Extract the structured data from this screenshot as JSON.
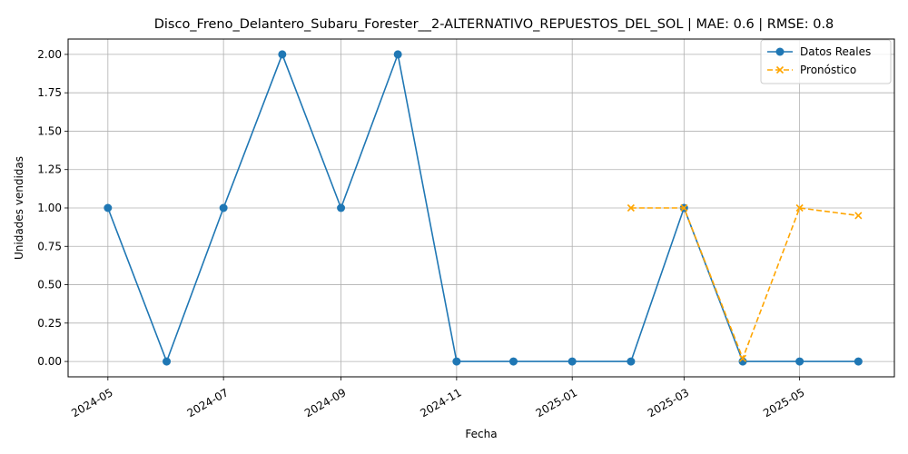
{
  "chart_data": {
    "type": "line",
    "title": "Disco_Freno_Delantero_Subaru_Forester__2-ALTERNATIVO_REPUESTOS_DEL_SOL | MAE: 0.6 | RMSE: 0.8",
    "xlabel": "Fecha",
    "ylabel": "Unidades vendidas",
    "ylim": [
      -0.1,
      2.1
    ],
    "xlim": [
      "2024-04-10",
      "2025-06-20"
    ],
    "grid": true,
    "legend_position": "top-right",
    "x_ticks": [
      "2024-05",
      "2024-07",
      "2024-09",
      "2024-11",
      "2025-01",
      "2025-03",
      "2025-05"
    ],
    "y_ticks": [
      "0.00",
      "0.25",
      "0.50",
      "0.75",
      "1.00",
      "1.25",
      "1.50",
      "1.75",
      "2.00"
    ],
    "series": [
      {
        "name": "Datos Reales",
        "color": "#1f77b4",
        "style": "solid",
        "marker": "circle",
        "points": [
          {
            "x": "2024-05-01",
            "y": 1
          },
          {
            "x": "2024-06-01",
            "y": 0
          },
          {
            "x": "2024-07-01",
            "y": 1
          },
          {
            "x": "2024-08-01",
            "y": 2
          },
          {
            "x": "2024-09-01",
            "y": 1
          },
          {
            "x": "2024-10-01",
            "y": 2
          },
          {
            "x": "2024-11-01",
            "y": 0
          },
          {
            "x": "2024-12-01",
            "y": 0
          },
          {
            "x": "2025-01-01",
            "y": 0
          },
          {
            "x": "2025-02-01",
            "y": 0
          },
          {
            "x": "2025-03-01",
            "y": 1
          },
          {
            "x": "2025-04-01",
            "y": 0
          },
          {
            "x": "2025-05-01",
            "y": 0
          },
          {
            "x": "2025-06-01",
            "y": 0
          }
        ]
      },
      {
        "name": "Pronóstico",
        "color": "#ffa500",
        "style": "dashed",
        "marker": "x",
        "points": [
          {
            "x": "2025-02-01",
            "y": 1.0
          },
          {
            "x": "2025-03-01",
            "y": 1.0
          },
          {
            "x": "2025-04-01",
            "y": 0.02
          },
          {
            "x": "2025-05-01",
            "y": 1.0
          },
          {
            "x": "2025-06-01",
            "y": 0.95
          }
        ]
      }
    ]
  }
}
